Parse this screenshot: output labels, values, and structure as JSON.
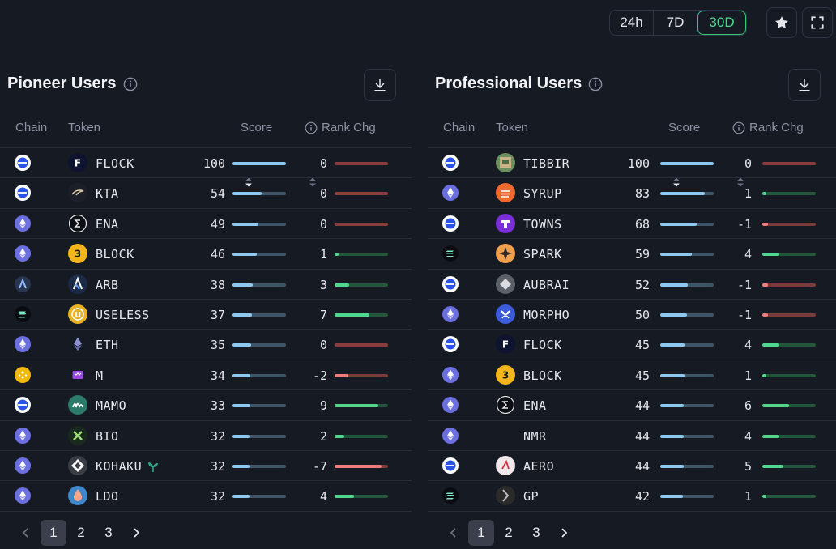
{
  "timeframes": [
    {
      "label": "24h",
      "active": false
    },
    {
      "label": "7D",
      "active": false
    },
    {
      "label": "30D",
      "active": true
    }
  ],
  "panels": [
    {
      "title": "Pioneer Users",
      "columns": {
        "chain": "Chain",
        "token": "Token",
        "score": "Score",
        "rank": "Rank Chg"
      },
      "rows": [
        {
          "chain": "base",
          "token": "FLOCK",
          "icon": "flock-icon",
          "score": "100",
          "score_pct": 100,
          "rank": "0",
          "rank_dir": "zero",
          "rank_pct": 0
        },
        {
          "chain": "base",
          "token": "KTA",
          "icon": "kta-icon",
          "score": "54",
          "score_pct": 54,
          "rank": "0",
          "rank_dir": "zero",
          "rank_pct": 0
        },
        {
          "chain": "ethereum",
          "token": "ENA",
          "icon": "ena-icon",
          "score": "49",
          "score_pct": 49,
          "rank": "0",
          "rank_dir": "zero",
          "rank_pct": 0
        },
        {
          "chain": "ethereum",
          "token": "BLOCK",
          "icon": "block-icon",
          "score": "46",
          "score_pct": 46,
          "rank": "1",
          "rank_dir": "pos",
          "rank_pct": 8
        },
        {
          "chain": "arbitrum",
          "token": "ARB",
          "icon": "arb-icon",
          "score": "38",
          "score_pct": 38,
          "rank": "3",
          "rank_dir": "pos",
          "rank_pct": 28
        },
        {
          "chain": "solana",
          "token": "USELESS",
          "icon": "useless-icon",
          "score": "37",
          "score_pct": 37,
          "rank": "7",
          "rank_dir": "pos",
          "rank_pct": 65
        },
        {
          "chain": "ethereum",
          "token": "ETH",
          "icon": "eth-icon",
          "score": "35",
          "score_pct": 35,
          "rank": "0",
          "rank_dir": "zero",
          "rank_pct": 0
        },
        {
          "chain": "bnb",
          "token": "M",
          "icon": "m-icon",
          "score": "34",
          "score_pct": 34,
          "rank": "-2",
          "rank_dir": "neg",
          "rank_pct": 25
        },
        {
          "chain": "base",
          "token": "MAMO",
          "icon": "mamo-icon",
          "score": "33",
          "score_pct": 33,
          "rank": "9",
          "rank_dir": "pos",
          "rank_pct": 82
        },
        {
          "chain": "ethereum",
          "token": "BIO",
          "icon": "bio-icon",
          "score": "32",
          "score_pct": 32,
          "rank": "2",
          "rank_dir": "pos",
          "rank_pct": 18
        },
        {
          "chain": "ethereum",
          "token": "KOHAKU",
          "icon": "kohaku-icon",
          "score": "32",
          "score_pct": 32,
          "rank": "-7",
          "rank_dir": "neg",
          "rank_pct": 88,
          "leaf": true
        },
        {
          "chain": "ethereum",
          "token": "LDO",
          "icon": "ldo-icon",
          "score": "32",
          "score_pct": 32,
          "rank": "4",
          "rank_dir": "pos",
          "rank_pct": 37
        }
      ],
      "pages": [
        "1",
        "2",
        "3"
      ]
    },
    {
      "title": "Professional Users",
      "columns": {
        "chain": "Chain",
        "token": "Token",
        "score": "Score",
        "rank": "Rank Chg"
      },
      "rows": [
        {
          "chain": "base",
          "token": "TIBBIR",
          "icon": "tibbir-icon",
          "score": "100",
          "score_pct": 100,
          "rank": "0",
          "rank_dir": "zero",
          "rank_pct": 0
        },
        {
          "chain": "ethereum",
          "token": "SYRUP",
          "icon": "syrup-icon",
          "score": "83",
          "score_pct": 83,
          "rank": "1",
          "rank_dir": "pos",
          "rank_pct": 8
        },
        {
          "chain": "base",
          "token": "TOWNS",
          "icon": "towns-icon",
          "score": "68",
          "score_pct": 68,
          "rank": "-1",
          "rank_dir": "neg",
          "rank_pct": 10
        },
        {
          "chain": "solana",
          "token": "SPARK",
          "icon": "spark-icon",
          "score": "59",
          "score_pct": 59,
          "rank": "4",
          "rank_dir": "pos",
          "rank_pct": 32
        },
        {
          "chain": "base",
          "token": "AUBRAI",
          "icon": "aubrai-icon",
          "score": "52",
          "score_pct": 52,
          "rank": "-1",
          "rank_dir": "neg",
          "rank_pct": 10
        },
        {
          "chain": "ethereum",
          "token": "MORPHO",
          "icon": "morpho-icon",
          "score": "50",
          "score_pct": 50,
          "rank": "-1",
          "rank_dir": "neg",
          "rank_pct": 10
        },
        {
          "chain": "base",
          "token": "FLOCK",
          "icon": "flock-icon",
          "score": "45",
          "score_pct": 45,
          "rank": "4",
          "rank_dir": "pos",
          "rank_pct": 32
        },
        {
          "chain": "ethereum",
          "token": "BLOCK",
          "icon": "block-icon",
          "score": "45",
          "score_pct": 45,
          "rank": "1",
          "rank_dir": "pos",
          "rank_pct": 8
        },
        {
          "chain": "ethereum",
          "token": "ENA",
          "icon": "ena-icon",
          "score": "44",
          "score_pct": 44,
          "rank": "6",
          "rank_dir": "pos",
          "rank_pct": 50
        },
        {
          "chain": "ethereum",
          "token": "NMR",
          "icon": "nmr-icon",
          "score": "44",
          "score_pct": 44,
          "rank": "4",
          "rank_dir": "pos",
          "rank_pct": 32
        },
        {
          "chain": "base",
          "token": "AERO",
          "icon": "aero-icon",
          "score": "44",
          "score_pct": 44,
          "rank": "5",
          "rank_dir": "pos",
          "rank_pct": 40
        },
        {
          "chain": "solana",
          "token": "GP",
          "icon": "gp-icon",
          "score": "42",
          "score_pct": 42,
          "rank": "1",
          "rank_dir": "pos",
          "rank_pct": 8
        }
      ],
      "pages": [
        "1",
        "2",
        "3"
      ]
    }
  ],
  "colors": {
    "background": "#161a23",
    "positive": "#4fd88d",
    "negative": "#f07b7b",
    "score_bar": "#8fc8ef"
  }
}
